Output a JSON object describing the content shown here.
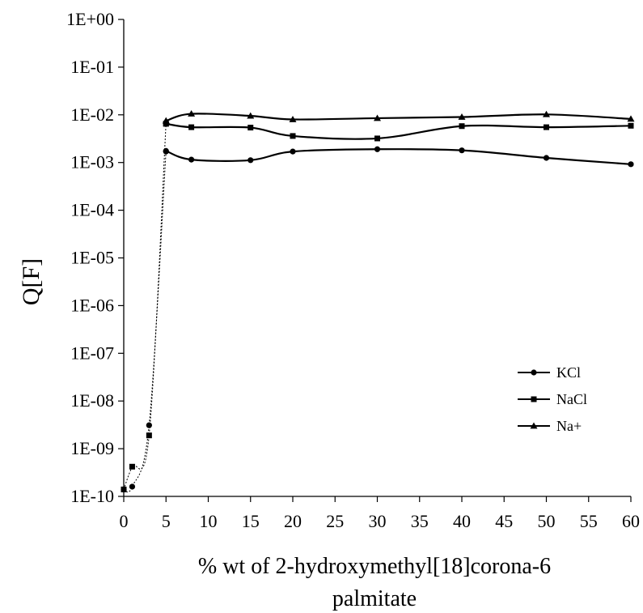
{
  "chart_data": {
    "type": "line",
    "title": "",
    "xlabel_lines": [
      "% wt of 2-hydroxymethyl[18]corona-6",
      "palmitate"
    ],
    "ylabel": "Q[F]",
    "xlim": [
      0,
      60
    ],
    "ylim": [
      1e-10,
      1
    ],
    "yscale": "log",
    "grid": false,
    "legend_position": "right-middle",
    "x_ticks": [
      "0",
      "5",
      "10",
      "15",
      "20",
      "25",
      "30",
      "35",
      "40",
      "45",
      "50",
      "55",
      "60"
    ],
    "y_ticks": [
      "1E-10",
      "1E-09",
      "1E-08",
      "1E-07",
      "1E-06",
      "1E-05",
      "1E-04",
      "1E-03",
      "1E-02",
      "1E-01",
      "1E+00"
    ],
    "low_concentration_series": [
      {
        "marker": "circle",
        "line": "dotted",
        "x": [
          0,
          1,
          3,
          5
        ],
        "y": [
          1.4e-10,
          1.6e-10,
          3.1e-09,
          0.0017
        ]
      },
      {
        "marker": "square",
        "line": "dotted",
        "x": [
          0,
          1,
          3,
          5
        ],
        "y": [
          1.4e-10,
          4.2e-10,
          1.9e-09,
          0.0065
        ]
      }
    ],
    "series": [
      {
        "name": "KCl",
        "marker": "circle",
        "line": "solid",
        "x": [
          5,
          8,
          15,
          20,
          30,
          40,
          50,
          60
        ],
        "y": [
          0.00175,
          0.00115,
          0.00112,
          0.0017,
          0.0019,
          0.0018,
          0.00125,
          0.00092
        ]
      },
      {
        "name": "NaCl",
        "marker": "square",
        "line": "solid",
        "x": [
          5,
          8,
          15,
          20,
          30,
          40,
          50,
          60
        ],
        "y": [
          0.0065,
          0.0055,
          0.0054,
          0.0036,
          0.0032,
          0.0058,
          0.0055,
          0.0059
        ]
      },
      {
        "name": "Na+",
        "marker": "triangle",
        "line": "solid",
        "x": [
          5,
          8,
          15,
          20,
          30,
          40,
          50,
          60
        ],
        "y": [
          0.0075,
          0.0105,
          0.0095,
          0.008,
          0.0085,
          0.009,
          0.0102,
          0.0082
        ]
      }
    ]
  }
}
